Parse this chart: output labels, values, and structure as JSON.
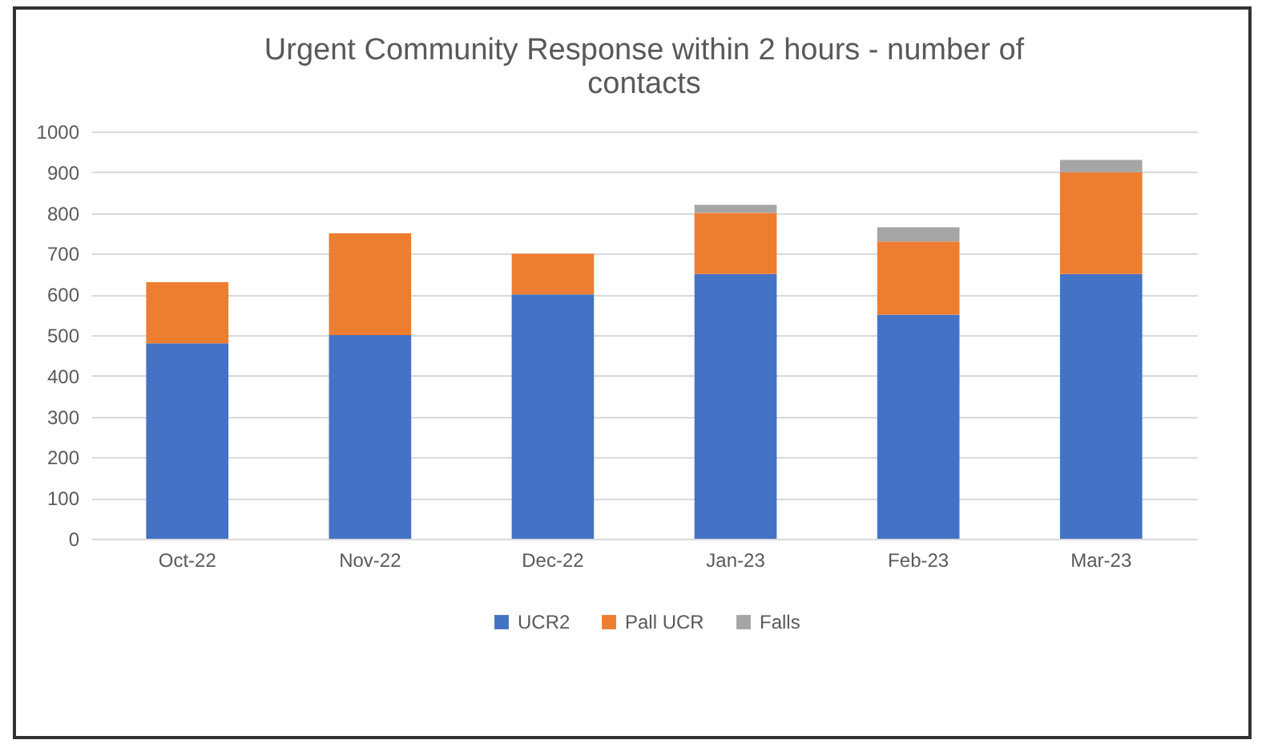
{
  "chart_data": {
    "type": "bar",
    "stacked": true,
    "title": "Urgent Community Response within 2 hours - number of contacts",
    "categories": [
      "Oct-22",
      "Nov-22",
      "Dec-22",
      "Jan-23",
      "Feb-23",
      "Mar-23"
    ],
    "series": [
      {
        "name": "UCR2",
        "color": "#4472c4",
        "values": [
          480,
          500,
          600,
          650,
          550,
          650
        ]
      },
      {
        "name": "Pall UCR",
        "color": "#ed7d31",
        "values": [
          150,
          250,
          100,
          150,
          180,
          250
        ]
      },
      {
        "name": "Falls",
        "color": "#a5a5a5",
        "values": [
          0,
          0,
          0,
          20,
          35,
          30
        ]
      }
    ],
    "ylim": [
      0,
      1000
    ],
    "yticks": [
      0,
      100,
      200,
      300,
      400,
      500,
      600,
      700,
      800,
      900,
      1000
    ],
    "grid": "y",
    "legend": "bottom"
  }
}
